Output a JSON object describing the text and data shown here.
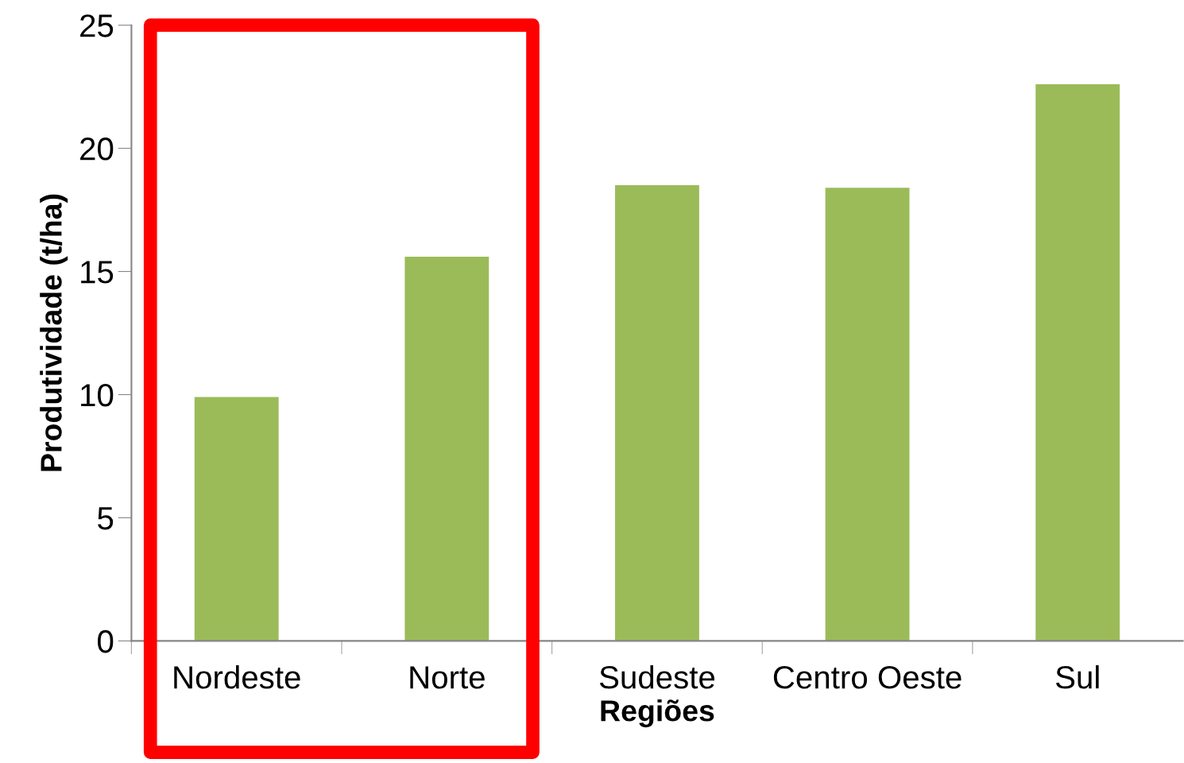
{
  "chart_data": {
    "type": "bar",
    "xlabel": "Regiões",
    "ylabel": "Produtividade (t/ha)",
    "categories": [
      "Nordeste",
      "Norte",
      "Sudeste",
      "Centro Oeste",
      "Sul"
    ],
    "values": [
      9.9,
      15.6,
      18.5,
      18.4,
      22.6
    ],
    "color": "#9bbb59",
    "ylim": [
      0,
      25
    ],
    "yticks": [
      0,
      5,
      10,
      15,
      20,
      25
    ],
    "grid": false
  }
}
